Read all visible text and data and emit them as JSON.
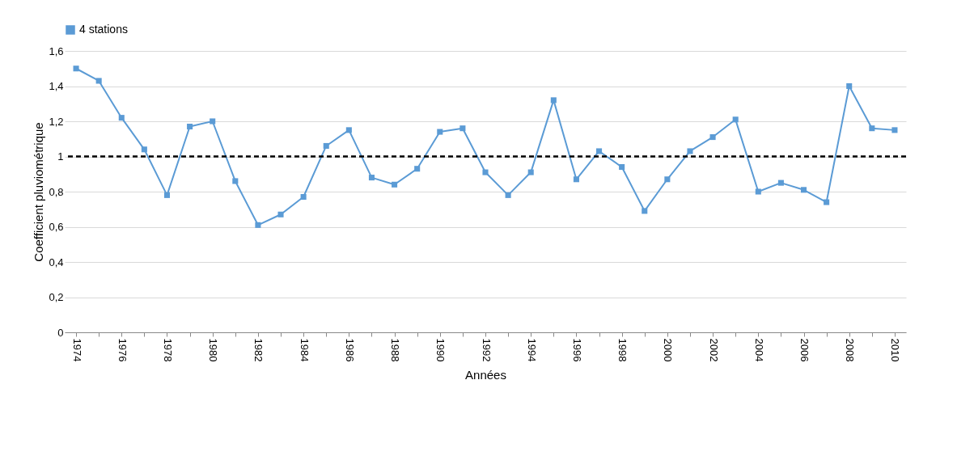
{
  "chart_data": {
    "type": "line",
    "xlabel": "Années",
    "ylabel": "Coefficient pluviométrique",
    "categories": [
      "1974",
      null,
      "1976",
      null,
      "1978",
      null,
      "1980",
      null,
      "1982",
      null,
      "1984",
      null,
      "1986",
      null,
      "1988",
      null,
      "1990",
      null,
      "1992",
      null,
      "1994",
      null,
      "1996",
      null,
      "1998",
      null,
      "2000",
      null,
      "2002",
      null,
      "2004",
      null,
      "2006",
      null,
      "2008",
      null,
      "2010"
    ],
    "series": [
      {
        "name": "4 stations",
        "color": "#5b9bd5",
        "values": [
          1.5,
          1.43,
          1.22,
          1.04,
          0.78,
          1.17,
          1.2,
          0.86,
          0.61,
          0.67,
          0.77,
          1.06,
          1.15,
          0.88,
          0.84,
          0.93,
          1.14,
          1.16,
          0.91,
          0.78,
          0.91,
          1.32,
          0.87,
          1.03,
          0.94,
          0.69,
          0.87,
          1.03,
          1.11,
          1.21,
          0.8,
          0.85,
          0.81,
          0.74,
          1.4,
          1.16,
          1.15
        ]
      }
    ],
    "ylim": [
      0,
      1.6
    ],
    "yticks": [
      0,
      {
        "value": 0.2,
        "label": "0,2"
      },
      {
        "value": 0.4,
        "label": "0,4"
      },
      {
        "value": 0.6,
        "label": "0,6"
      },
      {
        "value": 0.8,
        "label": "0,8"
      },
      1,
      {
        "value": 1.2,
        "label": "1,2"
      },
      {
        "value": 1.4,
        "label": "1,4"
      },
      {
        "value": 1.6,
        "label": "1,6"
      }
    ],
    "ref_lines": [
      {
        "axis": "y",
        "value": 1,
        "color": "#000000",
        "line_style": "dashed"
      }
    ],
    "grid": "y",
    "legend": "top",
    "marker": "square",
    "line_style": "solid"
  }
}
